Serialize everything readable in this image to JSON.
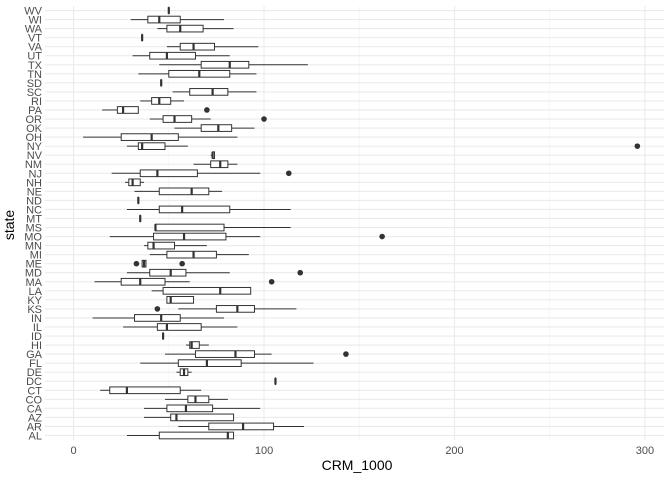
{
  "chart_data": {
    "type": "boxplot",
    "title": "",
    "xlabel": "CRM_1000",
    "ylabel": "state",
    "xlim": [
      -15,
      310
    ],
    "x_ticks": [
      0,
      100,
      200,
      300
    ],
    "x_tick_labels": [
      "0",
      "100",
      "200",
      "300"
    ],
    "grid": true,
    "legend": "none",
    "colors": {
      "background": "#ffffff",
      "grid_major": "#ebebeb",
      "grid_minor": "#f3f3f3",
      "box_stroke": "#333333",
      "box_fill": "#ffffff",
      "outlier": "#333333",
      "tick_text": "#4d4d4d"
    },
    "categories": [
      "AL",
      "AR",
      "AZ",
      "CA",
      "CO",
      "CT",
      "DC",
      "DE",
      "FL",
      "GA",
      "HI",
      "ID",
      "IL",
      "IN",
      "KS",
      "KY",
      "LA",
      "MA",
      "MD",
      "ME",
      "MI",
      "MN",
      "MO",
      "MS",
      "MT",
      "NC",
      "ND",
      "NE",
      "NH",
      "NJ",
      "NM",
      "NV",
      "NY",
      "OH",
      "OK",
      "OR",
      "PA",
      "RI",
      "SC",
      "SD",
      "TN",
      "TX",
      "UT",
      "VA",
      "VT",
      "WA",
      "WI",
      "WV"
    ],
    "boxes": [
      {
        "state": "AL",
        "whisker_low": 28,
        "q1": 45,
        "median": 81,
        "q3": 84,
        "whisker_high": 84,
        "outliers": []
      },
      {
        "state": "AR",
        "whisker_low": 55,
        "q1": 71,
        "median": 89,
        "q3": 105,
        "whisker_high": 121,
        "outliers": []
      },
      {
        "state": "AZ",
        "whisker_low": 37,
        "q1": 51,
        "median": 54,
        "q3": 84,
        "whisker_high": 84,
        "outliers": []
      },
      {
        "state": "CA",
        "whisker_low": 37,
        "q1": 49,
        "median": 59,
        "q3": 73,
        "whisker_high": 98,
        "outliers": []
      },
      {
        "state": "CO",
        "whisker_low": 48,
        "q1": 60,
        "median": 64,
        "q3": 71,
        "whisker_high": 81,
        "outliers": []
      },
      {
        "state": "CT",
        "whisker_low": 14,
        "q1": 19,
        "median": 28,
        "q3": 56,
        "whisker_high": 67,
        "outliers": []
      },
      {
        "state": "DC",
        "whisker_low": 106,
        "q1": 106,
        "median": 106,
        "q3": 106,
        "whisker_high": 106,
        "outliers": []
      },
      {
        "state": "DE",
        "whisker_low": 54,
        "q1": 56,
        "median": 58,
        "q3": 60,
        "whisker_high": 62,
        "outliers": []
      },
      {
        "state": "FL",
        "whisker_low": 35,
        "q1": 55,
        "median": 70,
        "q3": 88,
        "whisker_high": 126,
        "outliers": []
      },
      {
        "state": "GA",
        "whisker_low": 48,
        "q1": 64,
        "median": 85,
        "q3": 95,
        "whisker_high": 104,
        "outliers": [
          143
        ]
      },
      {
        "state": "HI",
        "whisker_low": 59,
        "q1": 61,
        "median": 62,
        "q3": 66,
        "whisker_high": 71,
        "outliers": []
      },
      {
        "state": "ID",
        "whisker_low": 47,
        "q1": 47,
        "median": 47,
        "q3": 47,
        "whisker_high": 47,
        "outliers": []
      },
      {
        "state": "IL",
        "whisker_low": 26,
        "q1": 44,
        "median": 49,
        "q3": 67,
        "whisker_high": 86,
        "outliers": []
      },
      {
        "state": "IN",
        "whisker_low": 10,
        "q1": 32,
        "median": 46,
        "q3": 56,
        "whisker_high": 79,
        "outliers": []
      },
      {
        "state": "KS",
        "whisker_low": 55,
        "q1": 75,
        "median": 86,
        "q3": 95,
        "whisker_high": 117,
        "outliers": [
          44
        ]
      },
      {
        "state": "KY",
        "whisker_low": 49,
        "q1": 49,
        "median": 51,
        "q3": 63,
        "whisker_high": 63,
        "outliers": []
      },
      {
        "state": "LA",
        "whisker_low": 41,
        "q1": 47,
        "median": 77,
        "q3": 93,
        "whisker_high": 93,
        "outliers": []
      },
      {
        "state": "MA",
        "whisker_low": 11,
        "q1": 25,
        "median": 35,
        "q3": 48,
        "whisker_high": 61,
        "outliers": [
          104
        ]
      },
      {
        "state": "MD",
        "whisker_low": 28,
        "q1": 40,
        "median": 51,
        "q3": 59,
        "whisker_high": 82,
        "outliers": [
          119
        ]
      },
      {
        "state": "ME",
        "whisker_low": 36,
        "q1": 36,
        "median": 37,
        "q3": 38,
        "whisker_high": 38,
        "outliers": [
          33,
          57
        ]
      },
      {
        "state": "MI",
        "whisker_low": 40,
        "q1": 49,
        "median": 63,
        "q3": 75,
        "whisker_high": 92,
        "outliers": []
      },
      {
        "state": "MN",
        "whisker_low": 37,
        "q1": 39,
        "median": 42,
        "q3": 53,
        "whisker_high": 70,
        "outliers": []
      },
      {
        "state": "MO",
        "whisker_low": 19,
        "q1": 42,
        "median": 58,
        "q3": 80,
        "whisker_high": 98,
        "outliers": [
          162
        ]
      },
      {
        "state": "MS",
        "whisker_low": 43,
        "q1": 43,
        "median": 43,
        "q3": 79,
        "whisker_high": 114,
        "outliers": []
      },
      {
        "state": "MT",
        "whisker_low": 35,
        "q1": 35,
        "median": 35,
        "q3": 35,
        "whisker_high": 35,
        "outliers": []
      },
      {
        "state": "NC",
        "whisker_low": 28,
        "q1": 45,
        "median": 57,
        "q3": 82,
        "whisker_high": 114,
        "outliers": []
      },
      {
        "state": "ND",
        "whisker_low": 34,
        "q1": 34,
        "median": 34,
        "q3": 34,
        "whisker_high": 34,
        "outliers": []
      },
      {
        "state": "NE",
        "whisker_low": 32,
        "q1": 45,
        "median": 62,
        "q3": 71,
        "whisker_high": 78,
        "outliers": []
      },
      {
        "state": "NH",
        "whisker_low": 27,
        "q1": 29,
        "median": 31,
        "q3": 35,
        "whisker_high": 37,
        "outliers": []
      },
      {
        "state": "NJ",
        "whisker_low": 20,
        "q1": 35,
        "median": 44,
        "q3": 65,
        "whisker_high": 98,
        "outliers": [
          113
        ]
      },
      {
        "state": "NM",
        "whisker_low": 63,
        "q1": 72,
        "median": 77,
        "q3": 81,
        "whisker_high": 86,
        "outliers": []
      },
      {
        "state": "NV",
        "whisker_low": 72,
        "q1": 73,
        "median": 73,
        "q3": 74,
        "whisker_high": 74,
        "outliers": []
      },
      {
        "state": "NY",
        "whisker_low": 28,
        "q1": 34,
        "median": 36,
        "q3": 48,
        "whisker_high": 60,
        "outliers": [
          296
        ]
      },
      {
        "state": "OH",
        "whisker_low": 5,
        "q1": 25,
        "median": 41,
        "q3": 55,
        "whisker_high": 86,
        "outliers": []
      },
      {
        "state": "OK",
        "whisker_low": 53,
        "q1": 67,
        "median": 76,
        "q3": 83,
        "whisker_high": 95,
        "outliers": []
      },
      {
        "state": "OR",
        "whisker_low": 40,
        "q1": 47,
        "median": 53,
        "q3": 62,
        "whisker_high": 72,
        "outliers": [
          100
        ]
      },
      {
        "state": "PA",
        "whisker_low": 15,
        "q1": 23,
        "median": 26,
        "q3": 34,
        "whisker_high": 34,
        "outliers": [
          70
        ]
      },
      {
        "state": "RI",
        "whisker_low": 35,
        "q1": 41,
        "median": 45,
        "q3": 51,
        "whisker_high": 58,
        "outliers": []
      },
      {
        "state": "SC",
        "whisker_low": 52,
        "q1": 61,
        "median": 73,
        "q3": 81,
        "whisker_high": 96,
        "outliers": []
      },
      {
        "state": "SD",
        "whisker_low": 46,
        "q1": 46,
        "median": 46,
        "q3": 46,
        "whisker_high": 46,
        "outliers": []
      },
      {
        "state": "TN",
        "whisker_low": 34,
        "q1": 50,
        "median": 66,
        "q3": 82,
        "whisker_high": 96,
        "outliers": []
      },
      {
        "state": "TX",
        "whisker_low": 45,
        "q1": 67,
        "median": 82,
        "q3": 92,
        "whisker_high": 123,
        "outliers": []
      },
      {
        "state": "UT",
        "whisker_low": 31,
        "q1": 40,
        "median": 49,
        "q3": 64,
        "whisker_high": 82,
        "outliers": []
      },
      {
        "state": "VA",
        "whisker_low": 49,
        "q1": 56,
        "median": 63,
        "q3": 74,
        "whisker_high": 97,
        "outliers": []
      },
      {
        "state": "VT",
        "whisker_low": 36,
        "q1": 36,
        "median": 36,
        "q3": 36,
        "whisker_high": 36,
        "outliers": []
      },
      {
        "state": "WA",
        "whisker_low": 44,
        "q1": 49,
        "median": 56,
        "q3": 68,
        "whisker_high": 84,
        "outliers": []
      },
      {
        "state": "WI",
        "whisker_low": 30,
        "q1": 39,
        "median": 45,
        "q3": 56,
        "whisker_high": 79,
        "outliers": []
      },
      {
        "state": "WV",
        "whisker_low": 50,
        "q1": 50,
        "median": 50,
        "q3": 50,
        "whisker_high": 50,
        "outliers": []
      }
    ]
  }
}
